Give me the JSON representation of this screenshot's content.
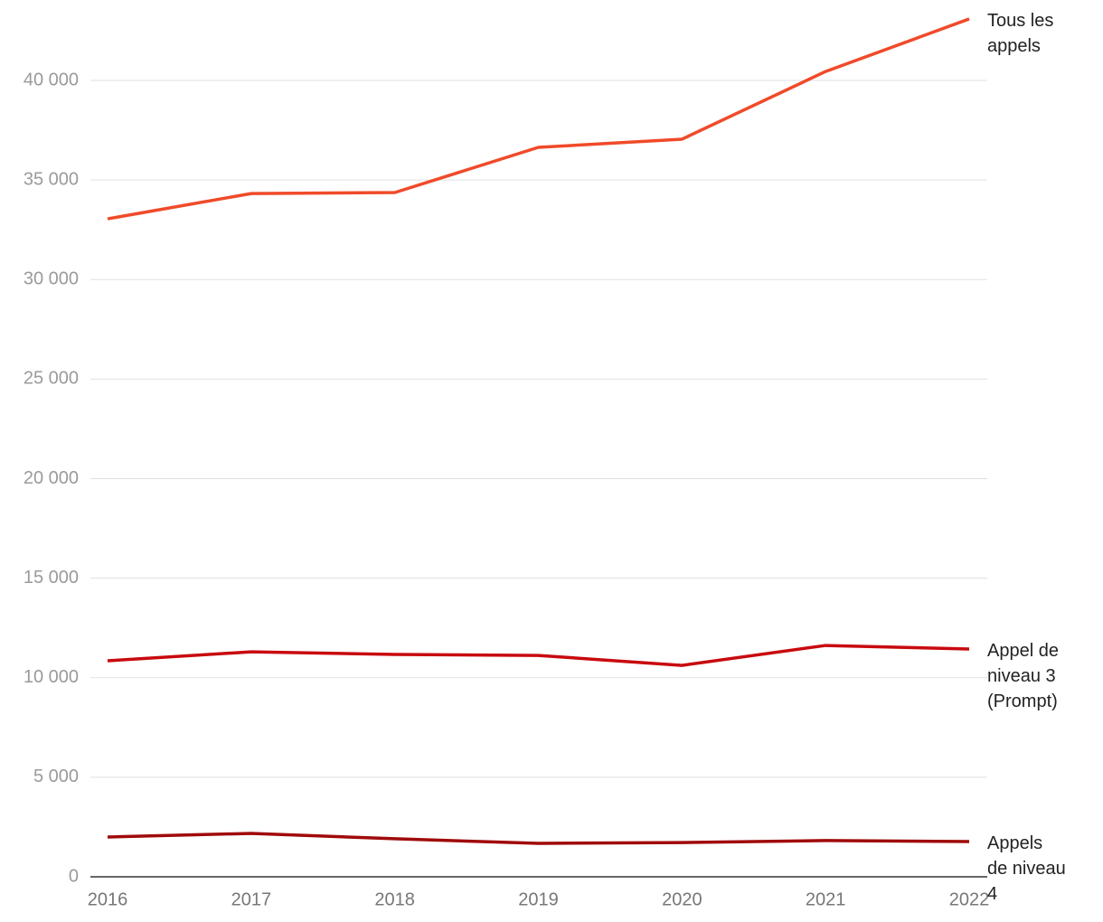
{
  "chart_data": {
    "type": "line",
    "categories": [
      "2016",
      "2017",
      "2018",
      "2019",
      "2020",
      "2021",
      "2022"
    ],
    "series": [
      {
        "name": "Tous les appels",
        "color": "#f04a2a",
        "values": [
          33050,
          34320,
          34370,
          36640,
          37050,
          40450,
          43090
        ]
      },
      {
        "name": "Appel de niveau 3 (Prompt)",
        "color": "#c80a0e",
        "values": [
          10850,
          11300,
          11170,
          11120,
          10620,
          11620,
          11440
        ]
      },
      {
        "name": "Appels de niveau 4",
        "color": "#a00a0a",
        "values": [
          2000,
          2180,
          1910,
          1680,
          1720,
          1820,
          1770
        ]
      }
    ],
    "ylim": [
      0,
      40000
    ],
    "yticks": [
      0,
      {
        "value": 5000,
        "label": "5 000"
      },
      {
        "value": 10000,
        "label": "10 000"
      },
      {
        "value": 15000,
        "label": "15 000"
      },
      {
        "value": 20000,
        "label": "20 000"
      },
      {
        "value": 25000,
        "label": "25 000"
      },
      {
        "value": 30000,
        "label": "30 000"
      },
      {
        "value": 35000,
        "label": "35 000"
      },
      {
        "value": 40000,
        "label": "40 000"
      }
    ],
    "grid": true
  }
}
